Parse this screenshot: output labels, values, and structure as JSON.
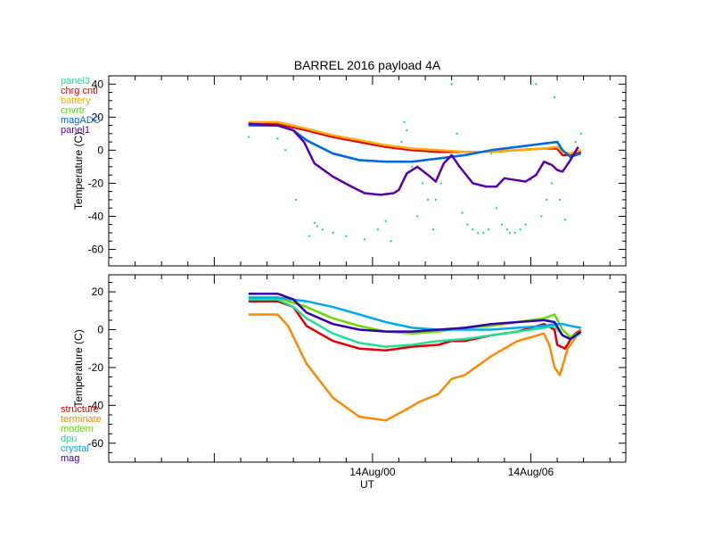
{
  "title": "BARREL 2016 payload 4A",
  "xlabel": "UT",
  "xtick_labels": [
    "14Aug/00",
    "14Aug/06"
  ],
  "chart_data": [
    {
      "type": "line",
      "ylabel": "Temperature (C)",
      "ylim": [
        -70,
        45
      ],
      "yticks": [
        -60,
        -40,
        -20,
        0,
        20,
        40
      ],
      "xlim": [
        -10,
        9.6
      ],
      "series": [
        {
          "name": "panel3",
          "color": "#22dd99",
          "style": "dots",
          "x": [
            -4.7,
            -3.6,
            -3.3,
            -2.9,
            -2.4,
            -2.2,
            -2.1,
            -1.9,
            -1.5,
            -1.0,
            -0.3,
            0.2,
            0.5,
            0.7,
            0.9,
            1.1,
            1.2,
            1.3,
            1.5,
            1.7,
            1.9,
            2.1,
            2.3,
            2.4,
            2.6,
            2.8,
            3.0,
            3.2,
            3.4,
            3.6,
            3.8,
            4.0,
            4.2,
            4.4,
            4.5,
            4.7,
            4.9,
            5.1,
            5.2,
            5.4,
            5.6,
            5.8,
            6.0,
            6.2,
            6.4,
            6.6,
            6.8,
            6.9,
            7.1,
            7.3,
            7.5,
            7.7,
            7.9
          ],
          "y": [
            8,
            7,
            0,
            -30,
            -52,
            -44,
            -46,
            -48,
            -50,
            -52,
            -54,
            -48,
            -43,
            -55,
            -25,
            5,
            17,
            12,
            -10,
            -40,
            -20,
            -30,
            -48,
            -30,
            -20,
            -5,
            40,
            10,
            -38,
            -45,
            -48,
            -50,
            -50,
            -48,
            -2,
            -35,
            -45,
            -48,
            -50,
            -50,
            -48,
            -45,
            -18,
            40,
            -40,
            -30,
            -20,
            32,
            -30,
            -42,
            -5,
            5,
            10
          ]
        },
        {
          "name": "chrg cntl",
          "color": "#dd0000",
          "x": [
            -4.7,
            -3.6,
            -2.5,
            -1.5,
            -0.5,
            0.5,
            1.5,
            2.5,
            3.5,
            4.5,
            5.5,
            6.5,
            7.0,
            7.2,
            7.5,
            7.9
          ],
          "y": [
            16,
            16,
            12,
            8,
            5,
            2,
            0,
            -1,
            -1,
            -1,
            0,
            1,
            1,
            -3,
            -3,
            -1
          ]
        },
        {
          "name": "battery",
          "color": "#ffaa00",
          "x": [
            -4.7,
            -3.6,
            -2.5,
            -1.5,
            -0.5,
            0.5,
            1.5,
            2.5,
            3.5,
            4.5,
            5.5,
            6.5,
            7.0,
            7.2,
            7.5,
            7.9
          ],
          "y": [
            17,
            17,
            13,
            9,
            6,
            3,
            1,
            0,
            -1,
            -1,
            0,
            1,
            2,
            -1,
            -2,
            0
          ]
        },
        {
          "name": "cnvrtr",
          "color": "#44ee00",
          "x": [
            -4.7,
            -3.6,
            -3.0,
            -2.5,
            -1.5,
            -0.5,
            0.5,
            1.5,
            2.5,
            3.5,
            4.5,
            5.5,
            6.5,
            7.0,
            7.2,
            7.5,
            7.9
          ],
          "y": [
            15,
            15,
            12,
            6,
            -2,
            -6,
            -7,
            -7,
            -5,
            -3,
            0,
            2,
            4,
            5,
            0,
            -4,
            -2
          ]
        },
        {
          "name": "magADC",
          "color": "#0066ee",
          "x": [
            -4.7,
            -3.6,
            -3.0,
            -2.5,
            -1.5,
            -0.5,
            0.5,
            1.5,
            2.5,
            3.5,
            4.5,
            5.5,
            6.5,
            7.0,
            7.2,
            7.5,
            7.9
          ],
          "y": [
            15,
            15,
            12,
            6,
            -2,
            -6,
            -7,
            -7,
            -5,
            -3,
            0,
            2,
            4,
            5,
            0,
            -4,
            -2
          ]
        },
        {
          "name": "panel1",
          "color": "#5500aa",
          "x": [
            -4.7,
            -3.6,
            -3.0,
            -2.6,
            -2.2,
            -1.5,
            -0.8,
            -0.3,
            0.3,
            0.8,
            1.0,
            1.3,
            1.7,
            2.1,
            2.4,
            2.7,
            3.0,
            3.3,
            3.8,
            4.3,
            4.7,
            5.0,
            5.4,
            5.8,
            6.2,
            6.5,
            6.8,
            7.0,
            7.2,
            7.5,
            7.8
          ],
          "y": [
            16,
            15,
            12,
            5,
            -8,
            -16,
            -22,
            -26,
            -27,
            -26,
            -24,
            -14,
            -10,
            -15,
            -19,
            -8,
            -3,
            -10,
            -20,
            -22,
            -22,
            -17,
            -18,
            -19,
            -15,
            -7,
            -9,
            -12,
            -13,
            -6,
            2
          ]
        }
      ]
    },
    {
      "type": "line",
      "ylabel": "Temperature (C)",
      "ylim": [
        -70,
        29
      ],
      "yticks": [
        -60,
        -40,
        -20,
        0,
        20
      ],
      "xlim": [
        -10,
        9.6
      ],
      "series": [
        {
          "name": "structure",
          "color": "#dd0000",
          "x": [
            -4.7,
            -3.6,
            -3.0,
            -2.5,
            -1.5,
            -0.5,
            0.5,
            1.5,
            2.5,
            3.0,
            3.5,
            4.5,
            5.5,
            6.5,
            6.9,
            7.0,
            7.3,
            7.6,
            7.9
          ],
          "y": [
            15,
            15,
            12,
            2,
            -6,
            -10,
            -11,
            -9,
            -8,
            -6,
            -6,
            -3,
            -1,
            3,
            0,
            -8,
            -10,
            -3,
            0
          ]
        },
        {
          "name": "terminate",
          "color": "#ff8800",
          "x": [
            -4.7,
            -3.6,
            -3.2,
            -2.5,
            -1.5,
            -0.5,
            0.5,
            1.3,
            1.8,
            2.5,
            3.0,
            3.5,
            4.5,
            5.5,
            6.5,
            6.7,
            6.9,
            7.1,
            7.4,
            7.9
          ],
          "y": [
            8,
            8,
            2,
            -18,
            -36,
            -46,
            -48,
            -42,
            -38,
            -34,
            -26,
            -24,
            -14,
            -6,
            -2,
            -8,
            -20,
            -24,
            -10,
            0
          ]
        },
        {
          "name": "modem",
          "color": "#66dd00",
          "x": [
            -4.7,
            -3.6,
            -2.5,
            -1.5,
            -0.5,
            0.5,
            1.5,
            2.5,
            3.5,
            4.5,
            5.5,
            6.5,
            6.9,
            7.2,
            7.5,
            7.9
          ],
          "y": [
            17,
            17,
            12,
            6,
            2,
            -1,
            -2,
            -1,
            1,
            2,
            4,
            6,
            8,
            0,
            -4,
            -1
          ]
        },
        {
          "name": "dpu",
          "color": "#22dd99",
          "x": [
            -4.7,
            -3.6,
            -3.0,
            -2.5,
            -1.5,
            -0.5,
            0.5,
            1.5,
            2.5,
            3.5,
            4.5,
            5.5,
            6.5,
            6.9,
            7.2,
            7.5,
            7.9
          ],
          "y": [
            16,
            16,
            12,
            6,
            -2,
            -7,
            -9,
            -8,
            -6,
            -5,
            -3,
            -1,
            1,
            2,
            -3,
            -5,
            -2
          ]
        },
        {
          "name": "crystal",
          "color": "#00aaee",
          "x": [
            -4.7,
            -3.6,
            -2.5,
            -1.5,
            -0.5,
            0.5,
            1.5,
            2.5,
            3.5,
            4.5,
            5.5,
            6.5,
            6.9,
            7.2,
            7.5,
            7.9
          ],
          "y": [
            17,
            17,
            15,
            12,
            8,
            4,
            1,
            0,
            0,
            0,
            1,
            2,
            3,
            3,
            2,
            1
          ]
        },
        {
          "name": "mag",
          "color": "#3300aa",
          "x": [
            -4.7,
            -3.6,
            -3.0,
            -2.5,
            -1.5,
            -0.5,
            0.5,
            1.5,
            2.5,
            3.5,
            4.5,
            5.5,
            6.5,
            6.9,
            7.2,
            7.5,
            7.9
          ],
          "y": [
            19,
            19,
            16,
            9,
            3,
            0,
            -1,
            -1,
            0,
            1,
            3,
            4,
            5,
            4,
            -3,
            -5,
            -1
          ]
        }
      ]
    }
  ]
}
